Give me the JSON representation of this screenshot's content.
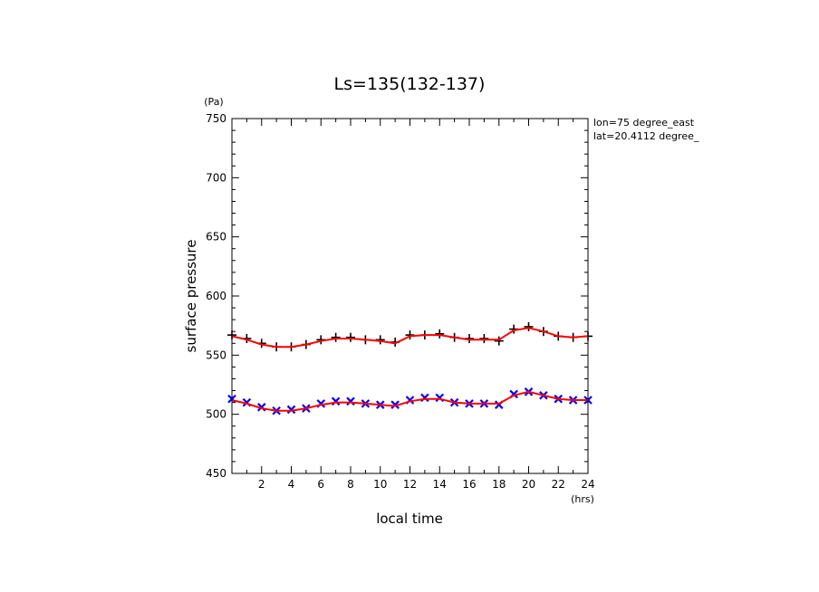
{
  "chart_data": {
    "type": "scatter",
    "title": "Ls=135(132-137)",
    "xlabel": "local time",
    "ylabel": "surface pressure",
    "x_unit": "(hrs)",
    "y_unit": "(Pa)",
    "xlim": [
      0,
      24
    ],
    "ylim": [
      450,
      750
    ],
    "x_ticks": [
      2,
      4,
      6,
      8,
      10,
      12,
      14,
      16,
      18,
      20,
      22,
      24
    ],
    "y_ticks": [
      450,
      500,
      550,
      600,
      650,
      700,
      750
    ],
    "annotations": [
      "lon=75 degree_east",
      "lat=20.4112 degree_"
    ],
    "grid": false,
    "colors": {
      "upper_markers": "#000000",
      "lower_markers": "#0000ff",
      "fit_line": "#ff0000"
    },
    "series": [
      {
        "marker": "plus",
        "color": "#000000",
        "x": [
          0,
          1,
          2,
          3,
          4,
          5,
          6,
          7,
          8,
          9,
          10,
          11,
          12,
          13,
          14,
          15,
          16,
          17,
          18,
          19,
          20,
          21,
          22,
          23,
          24
        ],
        "y": [
          567,
          564,
          560,
          557,
          557,
          559,
          563,
          565,
          565,
          563,
          563,
          561,
          567,
          567,
          568,
          565,
          564,
          564,
          562,
          572,
          574,
          570,
          566,
          565,
          566
        ]
      },
      {
        "marker": "x",
        "color": "#0000ff",
        "x": [
          0,
          1,
          2,
          3,
          4,
          5,
          6,
          7,
          8,
          9,
          10,
          11,
          12,
          13,
          14,
          15,
          16,
          17,
          18,
          19,
          20,
          21,
          22,
          23,
          24
        ],
        "y": [
          513,
          510,
          506,
          503,
          504,
          505,
          509,
          511,
          511,
          509,
          508,
          508,
          512,
          514,
          514,
          510,
          509,
          509,
          508,
          517,
          519,
          516,
          513,
          512,
          512
        ]
      },
      {
        "line": "solid",
        "color": "#ff0000",
        "x": [
          0,
          1,
          2,
          3,
          4,
          5,
          6,
          7,
          8,
          9,
          10,
          11,
          12,
          13,
          14,
          15,
          16,
          17,
          18,
          19,
          20,
          21,
          22,
          23,
          24
        ],
        "y": [
          566,
          563,
          559,
          557,
          557,
          559,
          562,
          564,
          564,
          563,
          562,
          560,
          566,
          567,
          567,
          565,
          563,
          563,
          563,
          571,
          573,
          570,
          566,
          565,
          566
        ]
      },
      {
        "line": "solid",
        "color": "#ff0000",
        "x": [
          0,
          1,
          2,
          3,
          4,
          5,
          6,
          7,
          8,
          9,
          10,
          11,
          12,
          13,
          14,
          15,
          16,
          17,
          18,
          19,
          20,
          21,
          22,
          23,
          24
        ],
        "y": [
          512,
          509,
          505,
          503,
          503,
          505,
          508,
          510,
          510,
          509,
          508,
          507,
          511,
          513,
          513,
          510,
          509,
          509,
          509,
          516,
          519,
          516,
          513,
          512,
          512
        ]
      }
    ]
  }
}
